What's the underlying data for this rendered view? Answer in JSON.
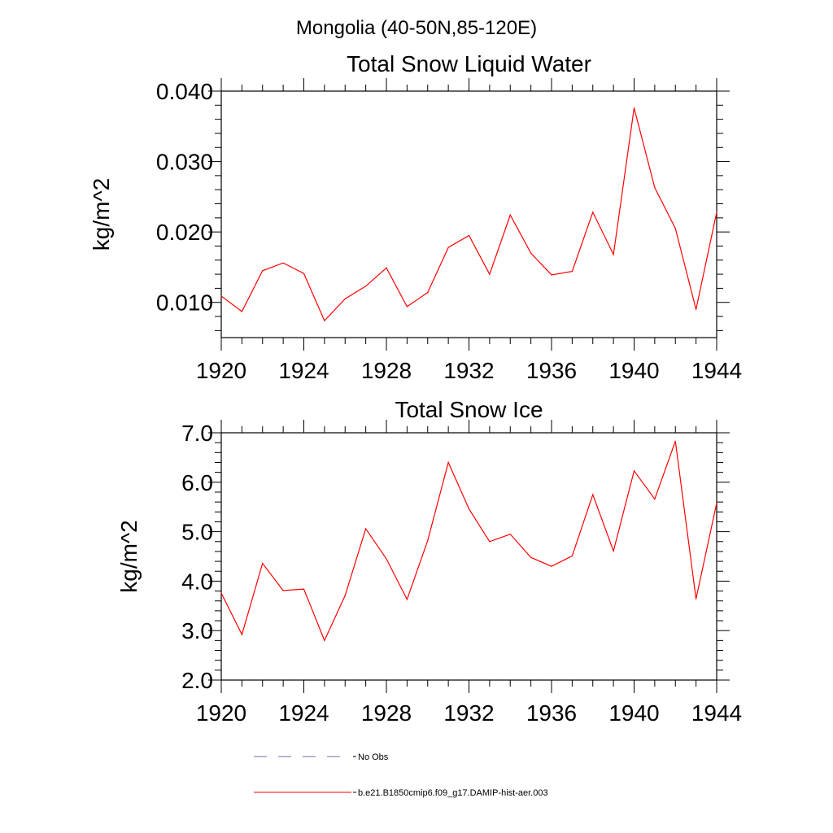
{
  "page": {
    "suptitle": "Mongolia (40-50N,85-120E)"
  },
  "legend": {
    "entries": [
      {
        "label": "No Obs",
        "style": "dashed",
        "color": "#6b6bb0"
      },
      {
        "label": "b.e21.B1850cmip6.f09_g17.DAMIP-hist-aer.003",
        "style": "solid",
        "color": "#ff0000"
      }
    ]
  },
  "chart_data": [
    {
      "type": "line",
      "title": "Total Snow Liquid Water",
      "xlabel": "",
      "ylabel": "kg/m^2",
      "xlim": [
        1920,
        1944
      ],
      "ylim": [
        0.005,
        0.04
      ],
      "xticks": [
        1920,
        1924,
        1928,
        1932,
        1936,
        1940,
        1944
      ],
      "xtick_labels": [
        "1920",
        "1924",
        "1928",
        "1932",
        "1936",
        "1940",
        "1944"
      ],
      "yticks": [
        0.01,
        0.02,
        0.03,
        0.04
      ],
      "ytick_labels": [
        "0.010",
        "0.020",
        "0.030",
        "0.040"
      ],
      "x": [
        1920,
        1921,
        1922,
        1923,
        1924,
        1925,
        1926,
        1927,
        1928,
        1929,
        1930,
        1931,
        1932,
        1933,
        1934,
        1935,
        1936,
        1937,
        1938,
        1939,
        1940,
        1941,
        1942,
        1943,
        1944
      ],
      "series": [
        {
          "name": "b.e21.B1850cmip6.f09_g17.DAMIP-hist-aer.003",
          "color": "#ff0000",
          "values": [
            0.0109,
            0.0087,
            0.0145,
            0.0156,
            0.0141,
            0.0074,
            0.0105,
            0.0123,
            0.0149,
            0.0094,
            0.0114,
            0.0178,
            0.0195,
            0.014,
            0.0224,
            0.017,
            0.0139,
            0.0144,
            0.0228,
            0.0168,
            0.0376,
            0.0263,
            0.0205,
            0.009,
            0.0228
          ]
        }
      ],
      "grid": false
    },
    {
      "type": "line",
      "title": "Total Snow Ice",
      "xlabel": "",
      "ylabel": "kg/m^2",
      "xlim": [
        1920,
        1944
      ],
      "ylim": [
        2.0,
        7.0
      ],
      "xticks": [
        1920,
        1924,
        1928,
        1932,
        1936,
        1940,
        1944
      ],
      "xtick_labels": [
        "1920",
        "1924",
        "1928",
        "1932",
        "1936",
        "1940",
        "1944"
      ],
      "yticks": [
        2.0,
        3.0,
        4.0,
        5.0,
        6.0,
        7.0
      ],
      "ytick_labels": [
        "2.0",
        "3.0",
        "4.0",
        "5.0",
        "6.0",
        "7.0"
      ],
      "x": [
        1920,
        1921,
        1922,
        1923,
        1924,
        1925,
        1926,
        1927,
        1928,
        1929,
        1930,
        1931,
        1932,
        1933,
        1934,
        1935,
        1936,
        1937,
        1938,
        1939,
        1940,
        1941,
        1942,
        1943,
        1944
      ],
      "series": [
        {
          "name": "b.e21.B1850cmip6.f09_g17.DAMIP-hist-aer.003",
          "color": "#ff0000",
          "values": [
            3.76,
            2.92,
            4.36,
            3.81,
            3.84,
            2.8,
            3.71,
            5.06,
            4.45,
            3.63,
            4.82,
            6.4,
            5.46,
            4.8,
            4.95,
            4.48,
            4.3,
            4.51,
            5.75,
            4.61,
            6.23,
            5.66,
            6.83,
            3.64,
            5.58
          ]
        }
      ],
      "grid": false
    }
  ]
}
